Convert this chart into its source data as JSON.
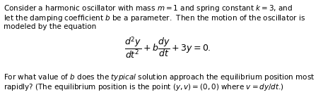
{
  "figsize": [
    4.74,
    1.38
  ],
  "dpi": 100,
  "background_color": "#ffffff",
  "text_color": "#000000",
  "font_size_body": 7.5,
  "font_size_eq": 9.0,
  "line1": "Consider a harmonic oscillator with mass $m = 1$ and spring constant $k = 3$, and",
  "line2": "let the damping coefficient $b$ be a parameter.  Then the motion of the oscillator is",
  "line3": "modeled by the equation",
  "equation": "$\\dfrac{d^2y}{dt^2} + b\\dfrac{dy}{dt} + 3y = 0.$",
  "line4": "For what value of $b$ does the $\\mathit{typical}$ solution approach the equilibrium position most",
  "line5": "rapidly? (The equilibrium position is the point $(y, v) = (0, 0)$ where $v = dy/dt$.)"
}
